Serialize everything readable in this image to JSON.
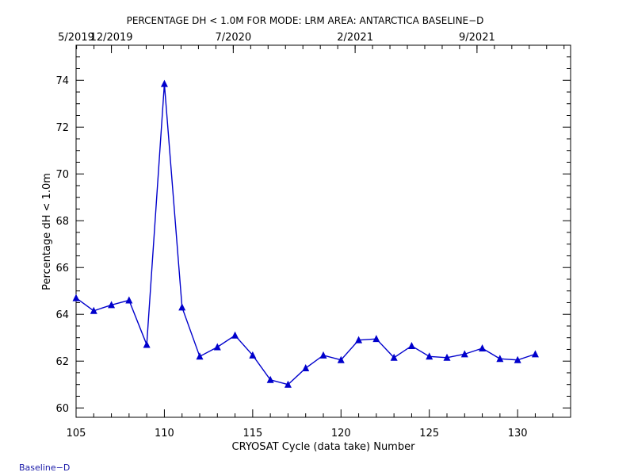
{
  "colors": {
    "series": "#0000cc",
    "axes": "#000000",
    "footer": "#1a1aa8"
  },
  "footer_text": "Baseline−D",
  "chart_data": {
    "type": "line",
    "title": "PERCENTAGE DH < 1.0M FOR MODE: LRM AREA: ANTARCTICA BASELINE−D",
    "xlabel": "CRYOSAT Cycle (data take) Number",
    "ylabel": "Percentage dH < 1.0m",
    "xlim": [
      105,
      133
    ],
    "ylim": [
      59.6,
      75.5
    ],
    "x_ticks": [
      105,
      110,
      115,
      120,
      125,
      130
    ],
    "y_ticks": [
      60,
      62,
      64,
      66,
      68,
      70,
      72,
      74
    ],
    "top_axis_ticks": [
      {
        "label": "5/2019",
        "x": 105
      },
      {
        "label": "12/2019",
        "x": 107
      },
      {
        "label": "7/2020",
        "x": 113.9
      },
      {
        "label": "2/2021",
        "x": 120.8
      },
      {
        "label": "9/2021",
        "x": 127.7
      }
    ],
    "x": [
      105,
      106,
      107,
      108,
      109,
      110,
      111,
      112,
      113,
      114,
      115,
      116,
      117,
      118,
      119,
      120,
      121,
      122,
      123,
      124,
      125,
      126,
      127,
      128,
      129,
      130,
      131
    ],
    "series": [
      {
        "marker": "triangle",
        "values": [
          64.7,
          64.15,
          64.4,
          64.6,
          62.7,
          73.85,
          64.3,
          62.2,
          62.6,
          63.1,
          62.25,
          61.2,
          61.0,
          61.7,
          62.25,
          62.05,
          62.9,
          62.95,
          62.15,
          62.65,
          62.2,
          62.15,
          62.3,
          62.55,
          62.1,
          62.05,
          62.3
        ]
      }
    ]
  }
}
